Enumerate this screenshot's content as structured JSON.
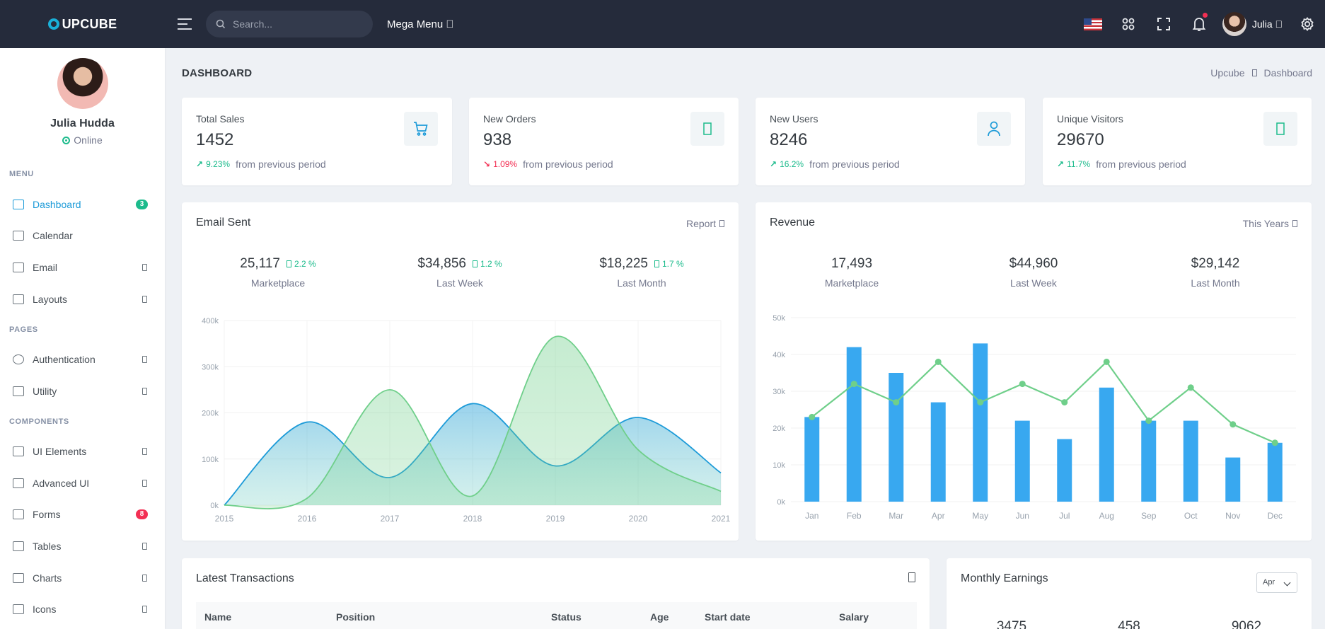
{
  "brand": {
    "name": "UPCUBE"
  },
  "topbar": {
    "search_placeholder": "Search...",
    "mega_menu": "Mega Menu ",
    "user_name": "Julia ",
    "icons": [
      "menu-icon",
      "search-icon",
      "us-flag-icon",
      "apps-grid-icon",
      "fullscreen-icon",
      "bell-icon",
      "settings-icon"
    ]
  },
  "sidebar": {
    "profile": {
      "name": "Julia Hudda",
      "status": "Online"
    },
    "sections": {
      "menu": "MENU",
      "pages": "PAGES",
      "components": "COMPONENTS"
    },
    "items": [
      {
        "label": "Dashboard",
        "badge": "3",
        "icon": "dashboard-icon"
      },
      {
        "label": "Calendar",
        "icon": "calendar-icon"
      },
      {
        "label": "Email",
        "icon": "mail-icon"
      },
      {
        "label": "Layouts",
        "icon": "layout-icon"
      },
      {
        "label": "Authentication",
        "icon": "account-circle-icon"
      },
      {
        "label": "Utility",
        "icon": "profile-icon"
      },
      {
        "label": "UI Elements",
        "icon": "pencil-ruler-icon"
      },
      {
        "label": "Advanced UI",
        "icon": "crown-icon"
      },
      {
        "label": "Forms",
        "badge": "8",
        "icon": "eraser-icon"
      },
      {
        "label": "Tables",
        "icon": "table-icon"
      },
      {
        "label": "Charts",
        "icon": "bar-chart-icon"
      },
      {
        "label": "Icons",
        "icon": "brush-icon"
      }
    ]
  },
  "page": {
    "title": "DASHBOARD",
    "breadcrumb": [
      "Upcube",
      "Dashboard"
    ]
  },
  "stats": [
    {
      "label": "Total Sales",
      "value": "1452",
      "change": "9.23%",
      "trend": "up",
      "note": "from previous period",
      "icon": "cart-icon"
    },
    {
      "label": "New Orders",
      "value": "938",
      "change": "1.09%",
      "trend": "down",
      "note": "from previous period",
      "icon": "dollar-icon"
    },
    {
      "label": "New Users",
      "value": "8246",
      "change": "16.2%",
      "trend": "up",
      "note": "from previous period",
      "icon": "user-icon"
    },
    {
      "label": "Unique Visitors",
      "value": "29670",
      "change": "11.7%",
      "trend": "up",
      "note": "from previous period",
      "icon": "dollar-icon"
    }
  ],
  "email_card": {
    "title": "Email Sent",
    "action": "Report",
    "summary": [
      {
        "value": "25,117",
        "pct": "2.2 %",
        "label": "Marketplace"
      },
      {
        "value": "$34,856",
        "pct": "1.2 %",
        "label": "Last Week"
      },
      {
        "value": "$18,225",
        "pct": "1.7 %",
        "label": "Last Month"
      }
    ]
  },
  "revenue_card": {
    "title": "Revenue",
    "action": "This Years",
    "summary": [
      {
        "value": "17,493",
        "label": "Marketplace"
      },
      {
        "value": "$44,960",
        "label": "Last Week"
      },
      {
        "value": "$29,142",
        "label": "Last Month"
      }
    ]
  },
  "transactions": {
    "title": "Latest Transactions",
    "columns": [
      "Name",
      "Position",
      "Status",
      "Age",
      "Start date",
      "Salary"
    ]
  },
  "earnings": {
    "title": "Monthly Earnings",
    "selected": "Apr",
    "values": [
      "3475",
      "458",
      "9062"
    ]
  },
  "chart_data": [
    {
      "type": "area",
      "x": [
        "2015",
        "2016",
        "2017",
        "2018",
        "2019",
        "2020",
        "2021"
      ],
      "ytick_labels": [
        "0k",
        "100k",
        "200k",
        "300k",
        "400k"
      ],
      "ylim": [
        0,
        400000
      ],
      "series": [
        {
          "values": [
            0,
            180000,
            60000,
            220000,
            85000,
            190000,
            70000
          ],
          "color": "#1d9bd8"
        },
        {
          "values": [
            0,
            15000,
            250000,
            20000,
            365000,
            120000,
            30000
          ],
          "color": "#6fcf8a"
        }
      ],
      "grid": true
    },
    {
      "type": "bar",
      "categories": [
        "Jan",
        "Feb",
        "Mar",
        "Apr",
        "May",
        "Jun",
        "Jul",
        "Aug",
        "Sep",
        "Oct",
        "Nov",
        "Dec"
      ],
      "ytick_labels": [
        "0k",
        "10k",
        "20k",
        "30k",
        "40k",
        "50k"
      ],
      "ylim": [
        0,
        50000
      ],
      "series": [
        {
          "type": "bar",
          "values": [
            23000,
            42000,
            35000,
            27000,
            43000,
            22000,
            17000,
            31000,
            22000,
            22000,
            12000,
            16000
          ],
          "color": "#38a8f0"
        },
        {
          "type": "line",
          "values": [
            23000,
            32000,
            27000,
            38000,
            27000,
            32000,
            27000,
            38000,
            22000,
            31000,
            21000,
            16000
          ],
          "color": "#6fcf8a"
        }
      ],
      "grid": true
    }
  ]
}
